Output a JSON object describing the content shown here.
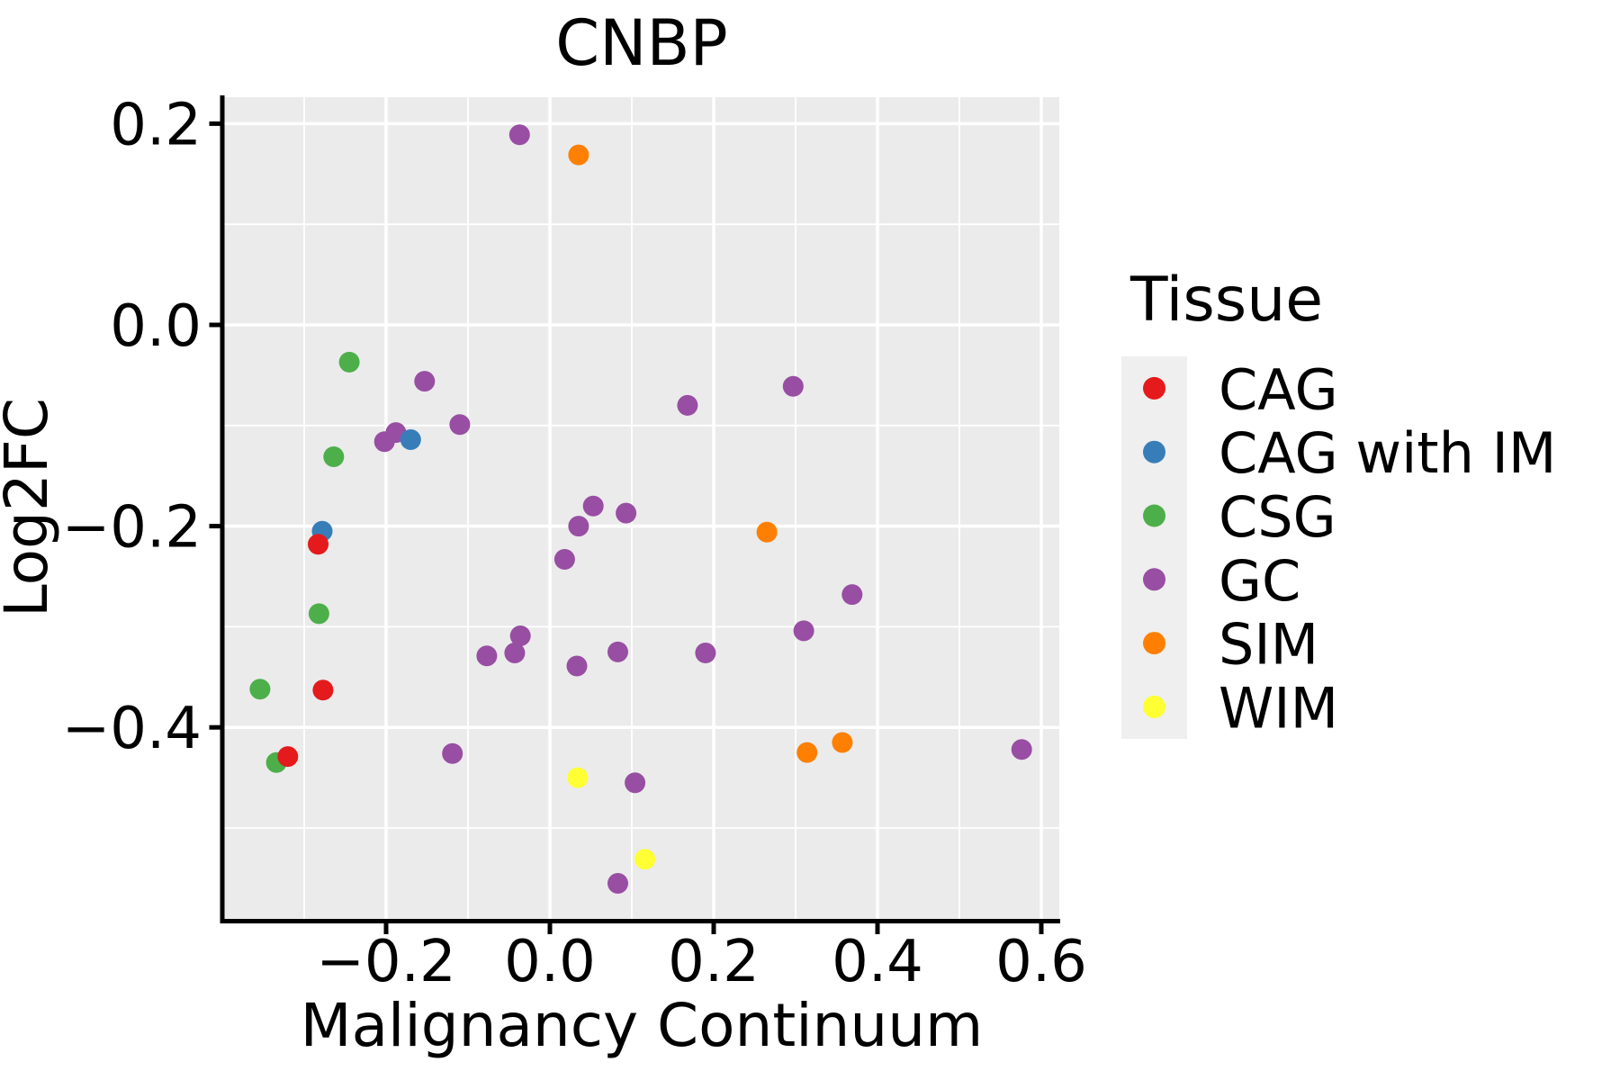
{
  "title": "CNBP",
  "axes": {
    "x": {
      "label": "Malignancy Continuum",
      "tick_labels": [
        "−0.2",
        "0.0",
        "0.2",
        "0.4",
        "0.6"
      ],
      "tick_values": [
        -0.2,
        0.0,
        0.2,
        0.4,
        0.6
      ],
      "minor_tick_values": [
        -0.3,
        -0.1,
        0.1,
        0.3,
        0.5
      ],
      "range": [
        -0.4,
        0.62
      ]
    },
    "y": {
      "label": "Log2FC",
      "tick_labels": [
        "0.2",
        "0.0",
        "−0.2",
        "−0.4"
      ],
      "tick_values": [
        0.2,
        0.0,
        -0.2,
        -0.4
      ],
      "minor_tick_values": [
        0.1,
        -0.1,
        -0.3,
        -0.5
      ],
      "range": [
        -0.59,
        0.23
      ]
    }
  },
  "legend": {
    "title": "Tissue",
    "items": [
      {
        "label": "CAG",
        "color": "#E41A1C"
      },
      {
        "label": "CAG with IM",
        "color": "#377EB8"
      },
      {
        "label": "CSG",
        "color": "#4DAF4A"
      },
      {
        "label": "GC",
        "color": "#984EA3"
      },
      {
        "label": "SIM",
        "color": "#FF7F00"
      },
      {
        "label": "WIM",
        "color": "#FFFF33"
      }
    ]
  },
  "style": {
    "panel_bg": "#EBEBEB",
    "grid_color": "#FFFFFF",
    "axis_color": "#000000",
    "legend_key_bg": "#EFEFEF",
    "text_color": "#000000"
  },
  "chart_data": {
    "type": "scatter",
    "title": "CNBP",
    "xlabel": "Malignancy Continuum",
    "ylabel": "Log2FC",
    "xlim": [
      -0.4,
      0.62
    ],
    "ylim": [
      -0.59,
      0.23
    ],
    "grid": "on",
    "legend_position": "right",
    "series": [
      {
        "name": "CSG",
        "color": "#4DAF4A",
        "points": [
          [
            -0.245,
            -0.037
          ],
          [
            -0.264,
            -0.131
          ],
          [
            -0.282,
            -0.287
          ],
          [
            -0.354,
            -0.362
          ],
          [
            -0.334,
            -0.435
          ]
        ]
      },
      {
        "name": "GC",
        "color": "#984EA3",
        "points": [
          [
            -0.037,
            0.189
          ],
          [
            -0.153,
            -0.056
          ],
          [
            -0.11,
            -0.099
          ],
          [
            -0.188,
            -0.107
          ],
          [
            -0.202,
            -0.116
          ],
          [
            0.168,
            -0.08
          ],
          [
            0.297,
            -0.061
          ],
          [
            0.053,
            -0.18
          ],
          [
            0.093,
            -0.187
          ],
          [
            0.035,
            -0.2
          ],
          [
            0.018,
            -0.233
          ],
          [
            -0.077,
            -0.329
          ],
          [
            -0.043,
            -0.326
          ],
          [
            -0.036,
            -0.309
          ],
          [
            0.033,
            -0.339
          ],
          [
            0.083,
            -0.325
          ],
          [
            0.19,
            -0.326
          ],
          [
            0.369,
            -0.268
          ],
          [
            0.31,
            -0.304
          ],
          [
            -0.119,
            -0.426
          ],
          [
            0.104,
            -0.455
          ],
          [
            0.083,
            -0.555
          ],
          [
            0.576,
            -0.422
          ]
        ]
      },
      {
        "name": "CAG with IM",
        "color": "#377EB8",
        "points": [
          [
            -0.17,
            -0.114
          ],
          [
            -0.278,
            -0.205
          ]
        ]
      },
      {
        "name": "CAG",
        "color": "#E41A1C",
        "points": [
          [
            -0.283,
            -0.218
          ],
          [
            -0.277,
            -0.363
          ],
          [
            -0.32,
            -0.429
          ]
        ]
      },
      {
        "name": "SIM",
        "color": "#FF7F00",
        "points": [
          [
            0.035,
            0.169
          ],
          [
            0.265,
            -0.206
          ],
          [
            0.357,
            -0.415
          ],
          [
            0.314,
            -0.425
          ]
        ]
      },
      {
        "name": "WIM",
        "color": "#FFFF33",
        "points": [
          [
            0.034,
            -0.45
          ],
          [
            0.116,
            -0.531
          ]
        ]
      }
    ]
  }
}
